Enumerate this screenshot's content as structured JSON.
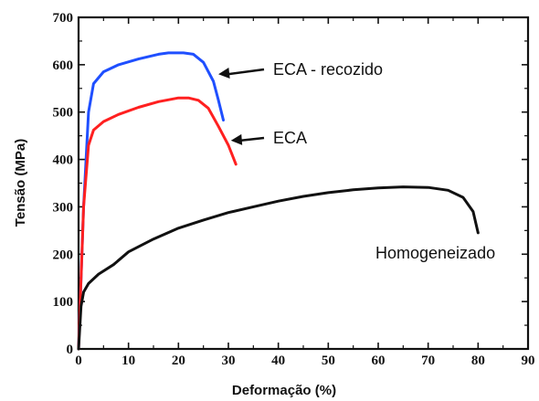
{
  "chart_data": {
    "type": "line",
    "xlabel": "Deformação (%)",
    "ylabel": "Tensão (MPa)",
    "xlim": [
      0,
      90
    ],
    "ylim": [
      0,
      700
    ],
    "x_ticks": [
      0,
      10,
      20,
      30,
      40,
      50,
      60,
      70,
      80,
      90
    ],
    "y_ticks": [
      0,
      100,
      200,
      300,
      400,
      500,
      600,
      700
    ],
    "grid": false,
    "legend": "none",
    "series": [
      {
        "color": "#1f4fff",
        "points": [
          [
            0,
            0
          ],
          [
            1,
            300
          ],
          [
            2,
            500
          ],
          [
            3,
            560
          ],
          [
            5,
            585
          ],
          [
            8,
            600
          ],
          [
            12,
            612
          ],
          [
            16,
            622
          ],
          [
            18,
            625
          ],
          [
            21,
            625
          ],
          [
            23,
            622
          ],
          [
            25,
            605
          ],
          [
            27,
            565
          ],
          [
            28,
            525
          ],
          [
            29,
            483
          ]
        ]
      },
      {
        "color": "#ff2020",
        "points": [
          [
            0,
            0
          ],
          [
            1,
            300
          ],
          [
            2,
            430
          ],
          [
            3,
            462
          ],
          [
            5,
            480
          ],
          [
            8,
            495
          ],
          [
            12,
            510
          ],
          [
            16,
            522
          ],
          [
            20,
            530
          ],
          [
            22,
            530
          ],
          [
            24,
            525
          ],
          [
            26,
            508
          ],
          [
            28,
            470
          ],
          [
            30,
            430
          ],
          [
            31.5,
            390
          ]
        ]
      },
      {
        "color": "#111111",
        "points": [
          [
            0,
            0
          ],
          [
            0.5,
            90
          ],
          [
            1,
            120
          ],
          [
            2,
            138
          ],
          [
            4,
            158
          ],
          [
            7,
            178
          ],
          [
            10,
            205
          ],
          [
            15,
            232
          ],
          [
            20,
            255
          ],
          [
            25,
            272
          ],
          [
            30,
            288
          ],
          [
            35,
            300
          ],
          [
            40,
            312
          ],
          [
            45,
            322
          ],
          [
            50,
            330
          ],
          [
            55,
            336
          ],
          [
            60,
            340
          ],
          [
            65,
            342
          ],
          [
            70,
            341
          ],
          [
            74,
            335
          ],
          [
            77,
            320
          ],
          [
            79,
            290
          ],
          [
            80,
            245
          ]
        ]
      }
    ],
    "annotations": [
      {
        "text": "ECA - recozido",
        "arrow_tip": [
          28,
          580
        ]
      },
      {
        "text": "ECA",
        "arrow_tip": [
          30.5,
          440
        ]
      },
      {
        "text": "Homogeneizado"
      }
    ]
  }
}
